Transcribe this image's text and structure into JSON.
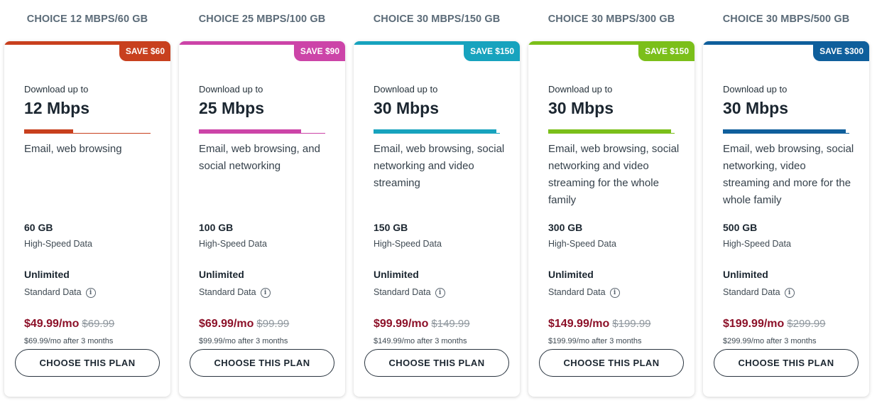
{
  "common": {
    "download_label": "Download up to",
    "high_speed_label": "High-Speed Data",
    "standard_value": "Unlimited",
    "standard_label": "Standard Data",
    "info_glyph": "i",
    "button_label": "CHOOSE THIS PLAN"
  },
  "plans": [
    {
      "title": "CHOICE 12 MBPS/60 GB",
      "save": "SAVE $60",
      "color": "#c8401e",
      "speed": "12 Mbps",
      "speed_fraction": 0.39,
      "usage": "Email, web browsing",
      "data": "60 GB",
      "price": "$49.99/mo",
      "old_price": "$69.99",
      "after": "$69.99/mo after 3 months"
    },
    {
      "title": "CHOICE 25 MBPS/100 GB",
      "save": "SAVE $90",
      "color": "#cc44a8",
      "speed": "25 Mbps",
      "speed_fraction": 0.81,
      "usage": "Email, web browsing, and social networking",
      "data": "100 GB",
      "price": "$69.99/mo",
      "old_price": "$99.99",
      "after": "$99.99/mo after 3 months"
    },
    {
      "title": "CHOICE 30 MBPS/150 GB",
      "save": "SAVE $150",
      "color": "#17a3be",
      "speed": "30 Mbps",
      "speed_fraction": 0.97,
      "usage": "Email, web browsing, social networking and video streaming",
      "data": "150 GB",
      "price": "$99.99/mo",
      "old_price": "$149.99",
      "after": "$149.99/mo after 3 months"
    },
    {
      "title": "CHOICE 30 MBPS/300 GB",
      "save": "SAVE $150",
      "color": "#7bbf1a",
      "speed": "30 Mbps",
      "speed_fraction": 0.97,
      "usage": "Email, web browsing, social networking and video streaming for the whole family",
      "data": "300 GB",
      "price": "$149.99/mo",
      "old_price": "$199.99",
      "after": "$199.99/mo after 3 months"
    },
    {
      "title": "CHOICE 30 MBPS/500 GB",
      "save": "SAVE $300",
      "color": "#0f5f9c",
      "speed": "30 Mbps",
      "speed_fraction": 0.97,
      "usage": "Email, web browsing, social networking, video streaming and more for the whole family",
      "data": "500 GB",
      "price": "$199.99/mo",
      "old_price": "$299.99",
      "after": "$299.99/mo after 3 months"
    }
  ]
}
